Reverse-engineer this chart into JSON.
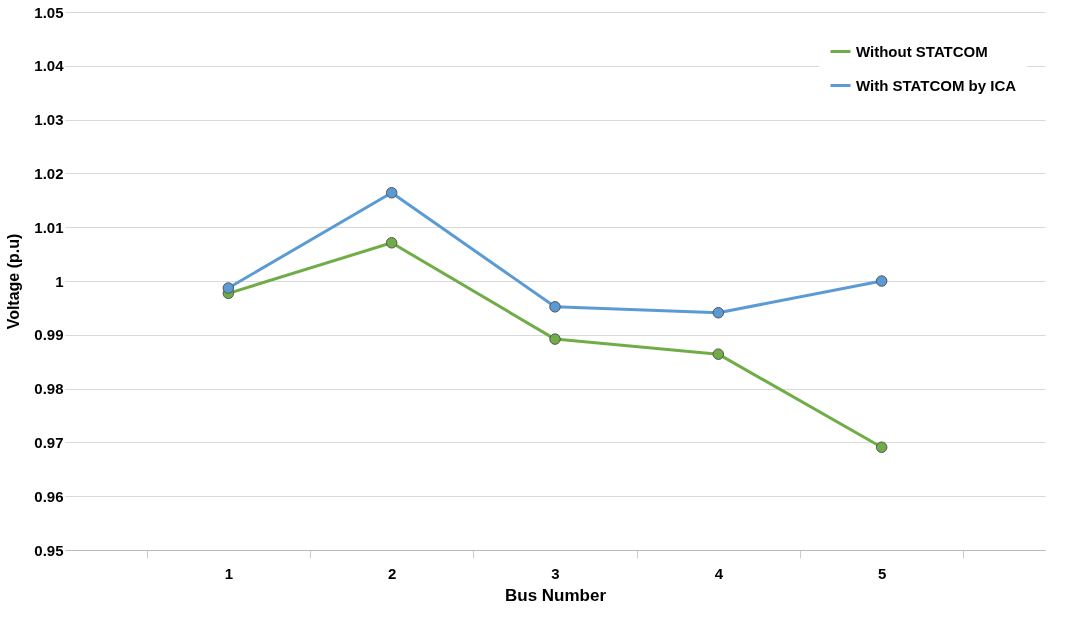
{
  "chart_data": {
    "type": "line",
    "xlabel": "Bus Number",
    "ylabel": "Voltage (p.u)",
    "categories": [
      "1",
      "2",
      "3",
      "4",
      "5"
    ],
    "series": [
      {
        "name": "Without STATCOM",
        "color": "#70ad47",
        "values": [
          0.9977,
          1.0071,
          0.9892,
          0.9864,
          0.9691
        ]
      },
      {
        "name": "With STATCOM by ICA",
        "color": "#5b9bd5",
        "values": [
          0.9987,
          1.0164,
          0.9952,
          0.9941,
          1.0
        ]
      }
    ],
    "ylim": [
      0.95,
      1.05
    ],
    "yticks": [
      0.95,
      0.96,
      0.97,
      0.98,
      0.99,
      {
        "value": 1,
        "label": "1"
      },
      1.01,
      1.02,
      1.03,
      1.04,
      1.05
    ],
    "grid": "y",
    "legend": "top right",
    "marker": "circle",
    "line_style": "solid"
  }
}
